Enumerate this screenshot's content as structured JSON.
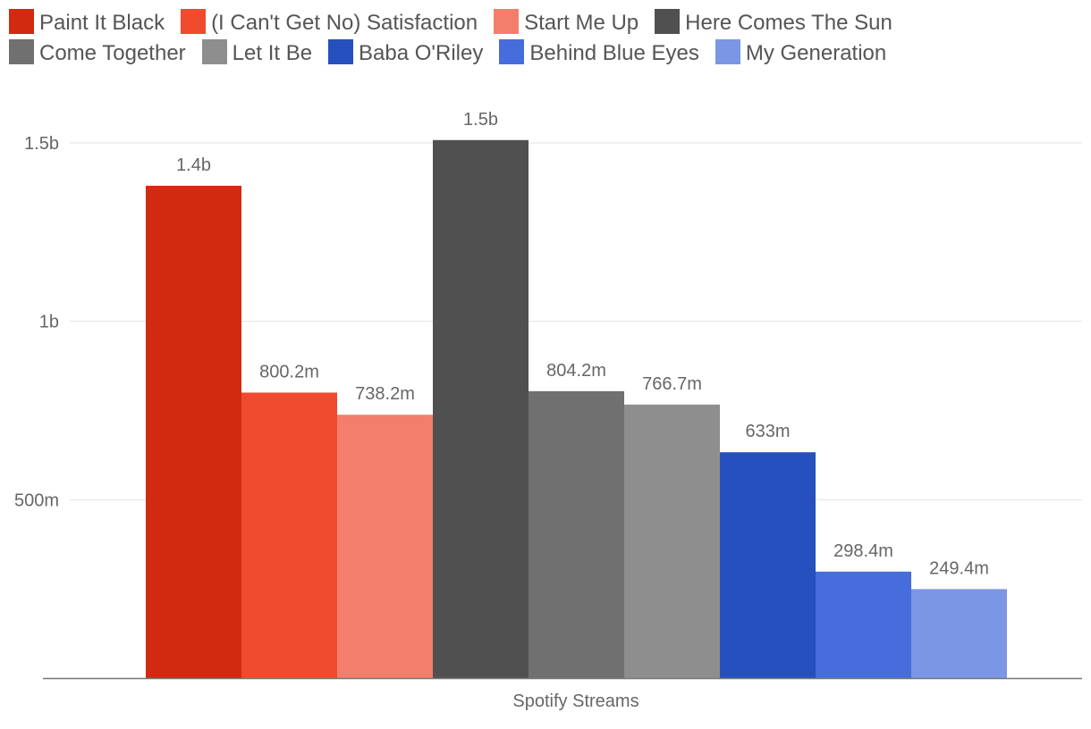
{
  "chart_data": {
    "type": "bar",
    "title": "",
    "xlabel": "Spotify Streams",
    "ylabel": "",
    "categories": [
      "Spotify Streams"
    ],
    "ylim": [
      0,
      1500000000
    ],
    "yticks": [
      {
        "value": 500000000,
        "label": "500m"
      },
      {
        "value": 1000000000,
        "label": "1b"
      },
      {
        "value": 1500000000,
        "label": "1.5b"
      }
    ],
    "legend_position": "top",
    "series": [
      {
        "name": "Paint It Black",
        "value": 1380000000,
        "label": "1.4b",
        "color": "#d12a11"
      },
      {
        "name": "(I Can't Get No) Satisfaction",
        "value": 800200000,
        "label": "800.2m",
        "color": "#f04a2f"
      },
      {
        "name": "Start Me Up",
        "value": 738200000,
        "label": "738.2m",
        "color": "#f47e6c"
      },
      {
        "name": "Here Comes The Sun",
        "value": 1508000000,
        "label": "1.5b",
        "color": "#505050"
      },
      {
        "name": "Come Together",
        "value": 804200000,
        "label": "804.2m",
        "color": "#707070"
      },
      {
        "name": "Let It Be",
        "value": 766700000,
        "label": "766.7m",
        "color": "#8e8e8e"
      },
      {
        "name": "Baba O'Riley",
        "value": 633000000,
        "label": "633m",
        "color": "#2650bd"
      },
      {
        "name": "Behind Blue Eyes",
        "value": 298400000,
        "label": "298.4m",
        "color": "#466ddb"
      },
      {
        "name": "My Generation",
        "value": 249400000,
        "label": "249.4m",
        "color": "#7b96e4"
      }
    ]
  }
}
